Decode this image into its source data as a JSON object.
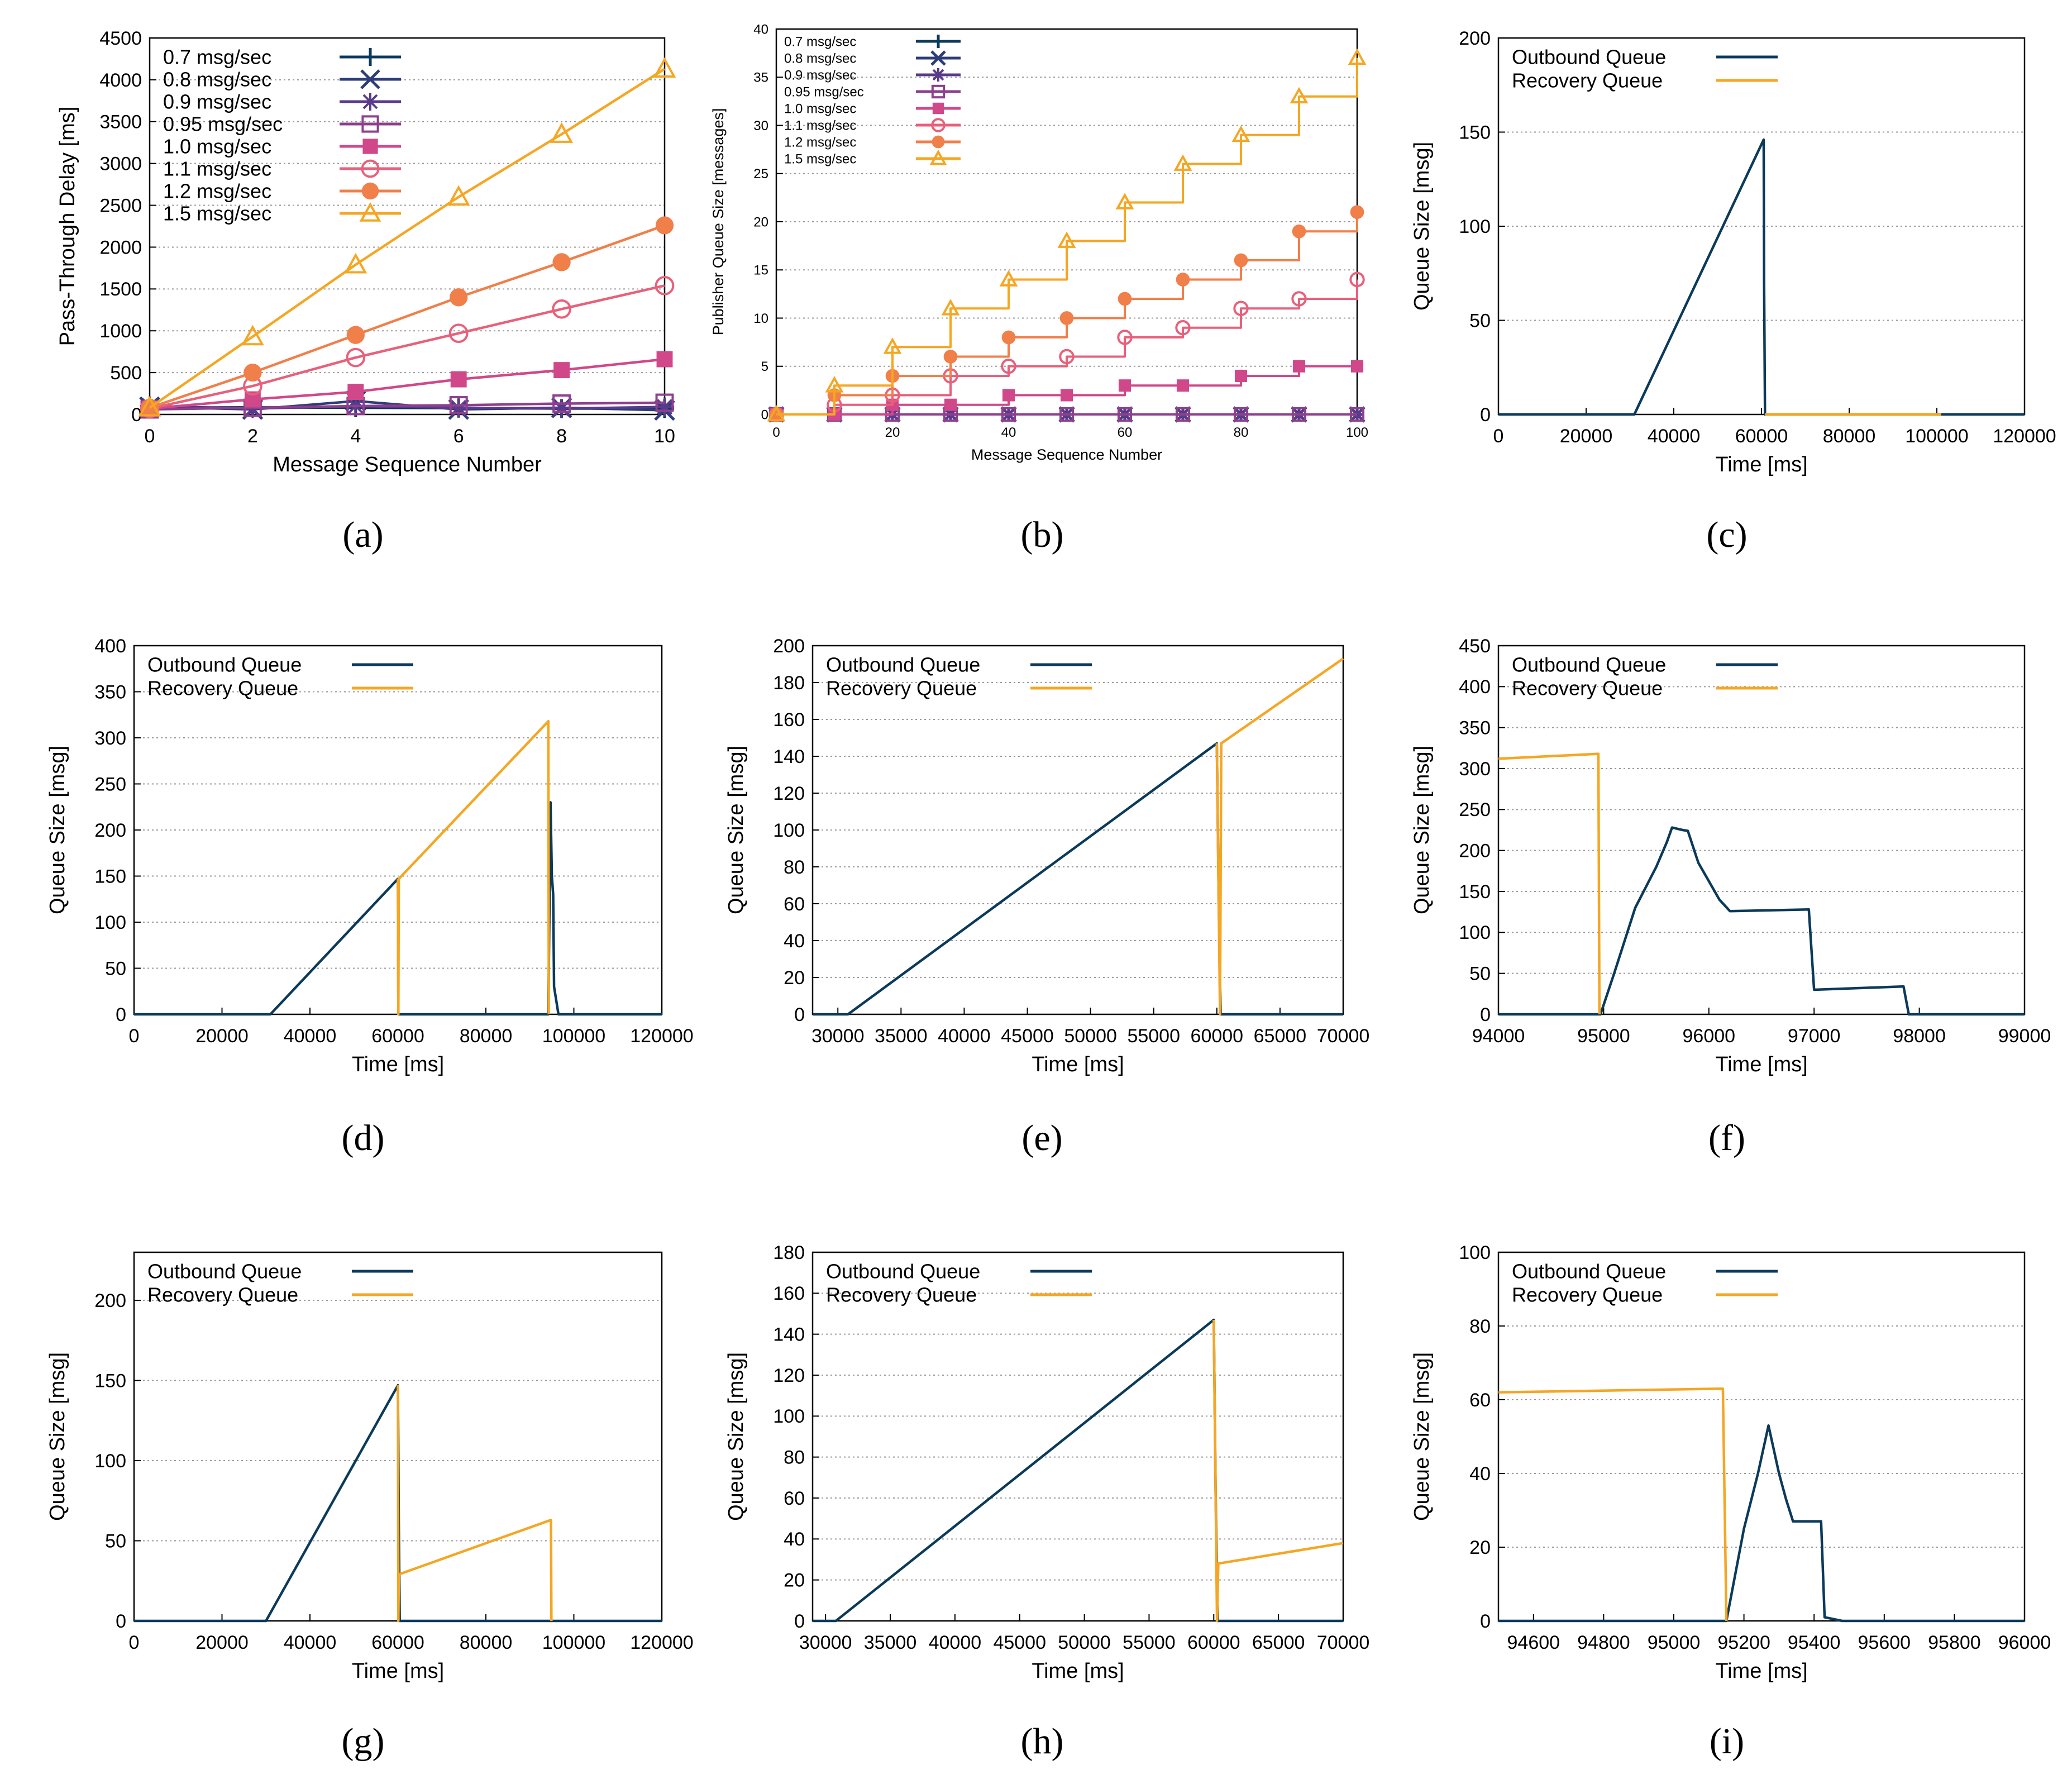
{
  "figure": {
    "captions": [
      "(a)",
      "(b)",
      "(c)",
      "(d)",
      "(e)",
      "(f)",
      "(g)",
      "(h)",
      "(i)"
    ],
    "colors": {
      "navy": "#0b3a5a",
      "orange": "#f5a623",
      "purple_dark": "#3b2b7a",
      "purple": "#6a3d9a",
      "magenta": "#8e3f8e",
      "pink": "#d0488a",
      "salmon": "#e8607a",
      "coral": "#f07f4a",
      "yellow": "#f5a623",
      "grid": "#9a9a9a"
    }
  },
  "chart_data": [
    {
      "id": "a",
      "type": "line",
      "xlabel": "Message Sequence Number",
      "ylabel": "Pass-Through Delay [ms]",
      "xlim": [
        0,
        10
      ],
      "ylim": [
        0,
        4500
      ],
      "xticks": [
        0,
        2,
        4,
        6,
        8,
        10
      ],
      "yticks": [
        0,
        500,
        1000,
        1500,
        2000,
        2500,
        3000,
        3500,
        4000,
        4500
      ],
      "legend": "top-left",
      "x": [
        0,
        2,
        4,
        6,
        8,
        10
      ],
      "series": [
        {
          "name": "0.7 msg/sec",
          "color": "#0b3a5a",
          "marker": "plus",
          "values": [
            80,
            85,
            80,
            75,
            70,
            70
          ]
        },
        {
          "name": "0.8 msg/sec",
          "color": "#2d3d7a",
          "marker": "x",
          "values": [
            90,
            60,
            160,
            60,
            80,
            50
          ]
        },
        {
          "name": "0.9 msg/sec",
          "color": "#5a3a8a",
          "marker": "star",
          "values": [
            100,
            70,
            100,
            80,
            70,
            90
          ]
        },
        {
          "name": "0.95 msg/sec",
          "color": "#8e3f8e",
          "marker": "square-open",
          "values": [
            60,
            80,
            100,
            110,
            130,
            140
          ]
        },
        {
          "name": "1.0 msg/sec",
          "color": "#d0488a",
          "marker": "square",
          "values": [
            70,
            180,
            270,
            420,
            530,
            660
          ]
        },
        {
          "name": "1.1 msg/sec",
          "color": "#e8607a",
          "marker": "circle-open",
          "values": [
            70,
            340,
            680,
            970,
            1260,
            1540
          ]
        },
        {
          "name": "1.2 msg/sec",
          "color": "#f07f4a",
          "marker": "circle",
          "values": [
            80,
            500,
            950,
            1400,
            1820,
            2260
          ]
        },
        {
          "name": "1.5 msg/sec",
          "color": "#f5a623",
          "marker": "triangle-open",
          "values": [
            80,
            930,
            1790,
            2600,
            3350,
            4130
          ]
        }
      ]
    },
    {
      "id": "b",
      "type": "line",
      "xlabel": "Message Sequence Number",
      "ylabel": "Publisher Queue Size [messages]",
      "xlim": [
        0,
        100
      ],
      "ylim": [
        0,
        40
      ],
      "xticks": [
        0,
        20,
        40,
        60,
        80,
        100
      ],
      "yticks": [
        0,
        5,
        10,
        15,
        20,
        25,
        30,
        35,
        40
      ],
      "legend": "top-left",
      "x": [
        0,
        10,
        20,
        30,
        40,
        50,
        60,
        70,
        80,
        90,
        100
      ],
      "series": [
        {
          "name": "0.7 msg/sec",
          "color": "#0b3a5a",
          "marker": "plus",
          "values": [
            0,
            0,
            0,
            0,
            0,
            0,
            0,
            0,
            0,
            0,
            0
          ]
        },
        {
          "name": "0.8 msg/sec",
          "color": "#2d3d7a",
          "marker": "x",
          "values": [
            0,
            0,
            0,
            0,
            0,
            0,
            0,
            0,
            0,
            0,
            0
          ]
        },
        {
          "name": "0.9 msg/sec",
          "color": "#5a3a8a",
          "marker": "star",
          "values": [
            0,
            0,
            0,
            0,
            0,
            0,
            0,
            0,
            0,
            0,
            0
          ]
        },
        {
          "name": "0.95 msg/sec",
          "color": "#8e3f8e",
          "marker": "square-open",
          "values": [
            0,
            0,
            0,
            0,
            0,
            0,
            0,
            0,
            0,
            0,
            0
          ]
        },
        {
          "name": "1.0 msg/sec",
          "color": "#d0488a",
          "marker": "square",
          "values": [
            0,
            0,
            1,
            1,
            2,
            2,
            3,
            3,
            4,
            5,
            5
          ]
        },
        {
          "name": "1.1 msg/sec",
          "color": "#e8607a",
          "marker": "circle-open",
          "values": [
            0,
            1,
            2,
            4,
            5,
            6,
            8,
            9,
            11,
            12,
            14
          ]
        },
        {
          "name": "1.2 msg/sec",
          "color": "#f07f4a",
          "marker": "circle",
          "values": [
            0,
            2,
            4,
            6,
            8,
            10,
            12,
            14,
            16,
            19,
            21
          ]
        },
        {
          "name": "1.5 msg/sec",
          "color": "#f5a623",
          "marker": "triangle-open",
          "values": [
            0,
            3,
            7,
            11,
            14,
            18,
            22,
            26,
            29,
            33,
            37
          ]
        }
      ]
    },
    {
      "id": "c",
      "type": "line",
      "xlabel": "Time [ms]",
      "ylabel": "Queue Size [msg]",
      "xlim": [
        0,
        120000
      ],
      "ylim": [
        0,
        200
      ],
      "xticks": [
        0,
        20000,
        40000,
        60000,
        80000,
        100000,
        120000
      ],
      "yticks": [
        0,
        50,
        100,
        150,
        200
      ],
      "legend": "top-left",
      "series": [
        {
          "name": "Outbound Queue",
          "color": "#0b3a5a",
          "x": [
            0,
            31000,
            60500,
            60600,
            60800,
            101000,
            115000,
            120000
          ],
          "values": [
            0,
            0,
            146,
            70,
            0,
            0,
            0,
            0
          ]
        },
        {
          "name": "Recovery Queue",
          "color": "#f5a623",
          "x": [
            60800,
            101000
          ],
          "values": [
            0,
            0
          ]
        }
      ]
    },
    {
      "id": "d",
      "type": "line",
      "xlabel": "Time [ms]",
      "ylabel": "Queue Size [msg]",
      "xlim": [
        0,
        120000
      ],
      "ylim": [
        0,
        400
      ],
      "xticks": [
        0,
        20000,
        40000,
        60000,
        80000,
        100000,
        120000
      ],
      "yticks": [
        0,
        50,
        100,
        150,
        200,
        250,
        300,
        350,
        400
      ],
      "legend": "top-left",
      "series": [
        {
          "name": "Outbound Queue",
          "color": "#0b3a5a",
          "x": [
            0,
            31000,
            60000,
            60100,
            94200,
            94700,
            95000,
            95300,
            95500,
            96500,
            97000,
            120000
          ],
          "values": [
            0,
            0,
            147,
            0,
            0,
            230,
            150,
            130,
            30,
            0,
            0,
            0
          ]
        },
        {
          "name": "Recovery Queue",
          "color": "#f5a623",
          "x": [
            60000,
            60100,
            60200,
            94200,
            94300
          ],
          "values": [
            147,
            0,
            147,
            318,
            0
          ]
        }
      ]
    },
    {
      "id": "e",
      "type": "line",
      "xlabel": "Time [ms]",
      "ylabel": "Queue Size [msg]",
      "xlim": [
        28000,
        70000
      ],
      "ylim": [
        0,
        200
      ],
      "xticks": [
        30000,
        35000,
        40000,
        45000,
        50000,
        55000,
        60000,
        65000,
        70000
      ],
      "yticks": [
        0,
        20,
        40,
        60,
        80,
        100,
        120,
        140,
        160,
        180,
        200
      ],
      "legend": "top-left",
      "series": [
        {
          "name": "Outbound Queue",
          "color": "#0b3a5a",
          "x": [
            28000,
            30800,
            60000,
            60150,
            60300,
            70000
          ],
          "values": [
            0,
            0,
            147,
            60,
            0,
            0
          ]
        },
        {
          "name": "Recovery Queue",
          "color": "#f5a623",
          "x": [
            60000,
            60250,
            60350,
            70000
          ],
          "values": [
            147,
            0,
            147,
            193
          ]
        }
      ]
    },
    {
      "id": "f",
      "type": "line",
      "xlabel": "Time [ms]",
      "ylabel": "Queue Size [msg]",
      "xlim": [
        94000,
        99000
      ],
      "ylim": [
        0,
        450
      ],
      "xticks": [
        94000,
        95000,
        96000,
        97000,
        98000,
        99000
      ],
      "yticks": [
        0,
        50,
        100,
        150,
        200,
        250,
        300,
        350,
        400,
        450
      ],
      "legend": "top-left",
      "series": [
        {
          "name": "Outbound Queue",
          "color": "#0b3a5a",
          "x": [
            94000,
            94970,
            95100,
            95300,
            95500,
            95600,
            95650,
            95750,
            95800,
            95900,
            96100,
            96200,
            96950,
            97000,
            97850,
            97900,
            99000
          ],
          "values": [
            0,
            0,
            50,
            130,
            180,
            210,
            228,
            225,
            224,
            185,
            140,
            126,
            128,
            30,
            34,
            0,
            0
          ]
        },
        {
          "name": "Recovery Queue",
          "color": "#f5a623",
          "x": [
            94000,
            94950,
            94960
          ],
          "values": [
            312,
            318,
            0
          ]
        }
      ]
    },
    {
      "id": "g",
      "type": "line",
      "xlabel": "Time [ms]",
      "ylabel": "Queue Size [msg]",
      "xlim": [
        0,
        120000
      ],
      "ylim": [
        0,
        230
      ],
      "xticks": [
        0,
        20000,
        40000,
        60000,
        80000,
        100000,
        120000
      ],
      "yticks": [
        0,
        50,
        100,
        150,
        200
      ],
      "legend": "top-left",
      "series": [
        {
          "name": "Outbound Queue",
          "color": "#0b3a5a",
          "x": [
            0,
            30000,
            60000,
            60200,
            60400,
            120000
          ],
          "values": [
            0,
            0,
            147,
            60,
            0,
            0
          ]
        },
        {
          "name": "Recovery Queue",
          "color": "#f5a623",
          "x": [
            60000,
            60100,
            60200,
            94800,
            94900
          ],
          "values": [
            147,
            0,
            29,
            63,
            0
          ]
        }
      ]
    },
    {
      "id": "h",
      "type": "line",
      "xlabel": "Time [ms]",
      "ylabel": "Queue Size [msg]",
      "xlim": [
        29000,
        70000
      ],
      "ylim": [
        0,
        180
      ],
      "xticks": [
        30000,
        35000,
        40000,
        45000,
        50000,
        55000,
        60000,
        65000,
        70000
      ],
      "yticks": [
        0,
        20,
        40,
        60,
        80,
        100,
        120,
        140,
        160,
        180
      ],
      "legend": "top-left",
      "series": [
        {
          "name": "Outbound Queue",
          "color": "#0b3a5a",
          "x": [
            29000,
            30800,
            60000,
            60150,
            60300,
            70000
          ],
          "values": [
            0,
            0,
            147,
            60,
            0,
            0
          ]
        },
        {
          "name": "Recovery Queue",
          "color": "#f5a623",
          "x": [
            60000,
            60250,
            60350,
            70000
          ],
          "values": [
            147,
            0,
            28,
            38
          ]
        }
      ]
    },
    {
      "id": "i",
      "type": "line",
      "xlabel": "Time [ms]",
      "ylabel": "Queue Size [msg]",
      "xlim": [
        94500,
        96000
      ],
      "ylim": [
        0,
        100
      ],
      "xticks": [
        94600,
        94800,
        95000,
        95200,
        95400,
        95600,
        95800,
        96000
      ],
      "yticks": [
        0,
        20,
        40,
        60,
        80,
        100
      ],
      "legend": "top-left",
      "series": [
        {
          "name": "Outbound Queue",
          "color": "#0b3a5a",
          "x": [
            94500,
            95150,
            95200,
            95240,
            95270,
            95300,
            95320,
            95340,
            95420,
            95430,
            95480,
            96000
          ],
          "values": [
            0,
            0,
            25,
            40,
            53,
            40,
            33,
            27,
            27,
            1,
            0,
            0
          ]
        },
        {
          "name": "Recovery Queue",
          "color": "#f5a623",
          "x": [
            94500,
            95140,
            95150
          ],
          "values": [
            62,
            63,
            0
          ]
        }
      ]
    }
  ]
}
